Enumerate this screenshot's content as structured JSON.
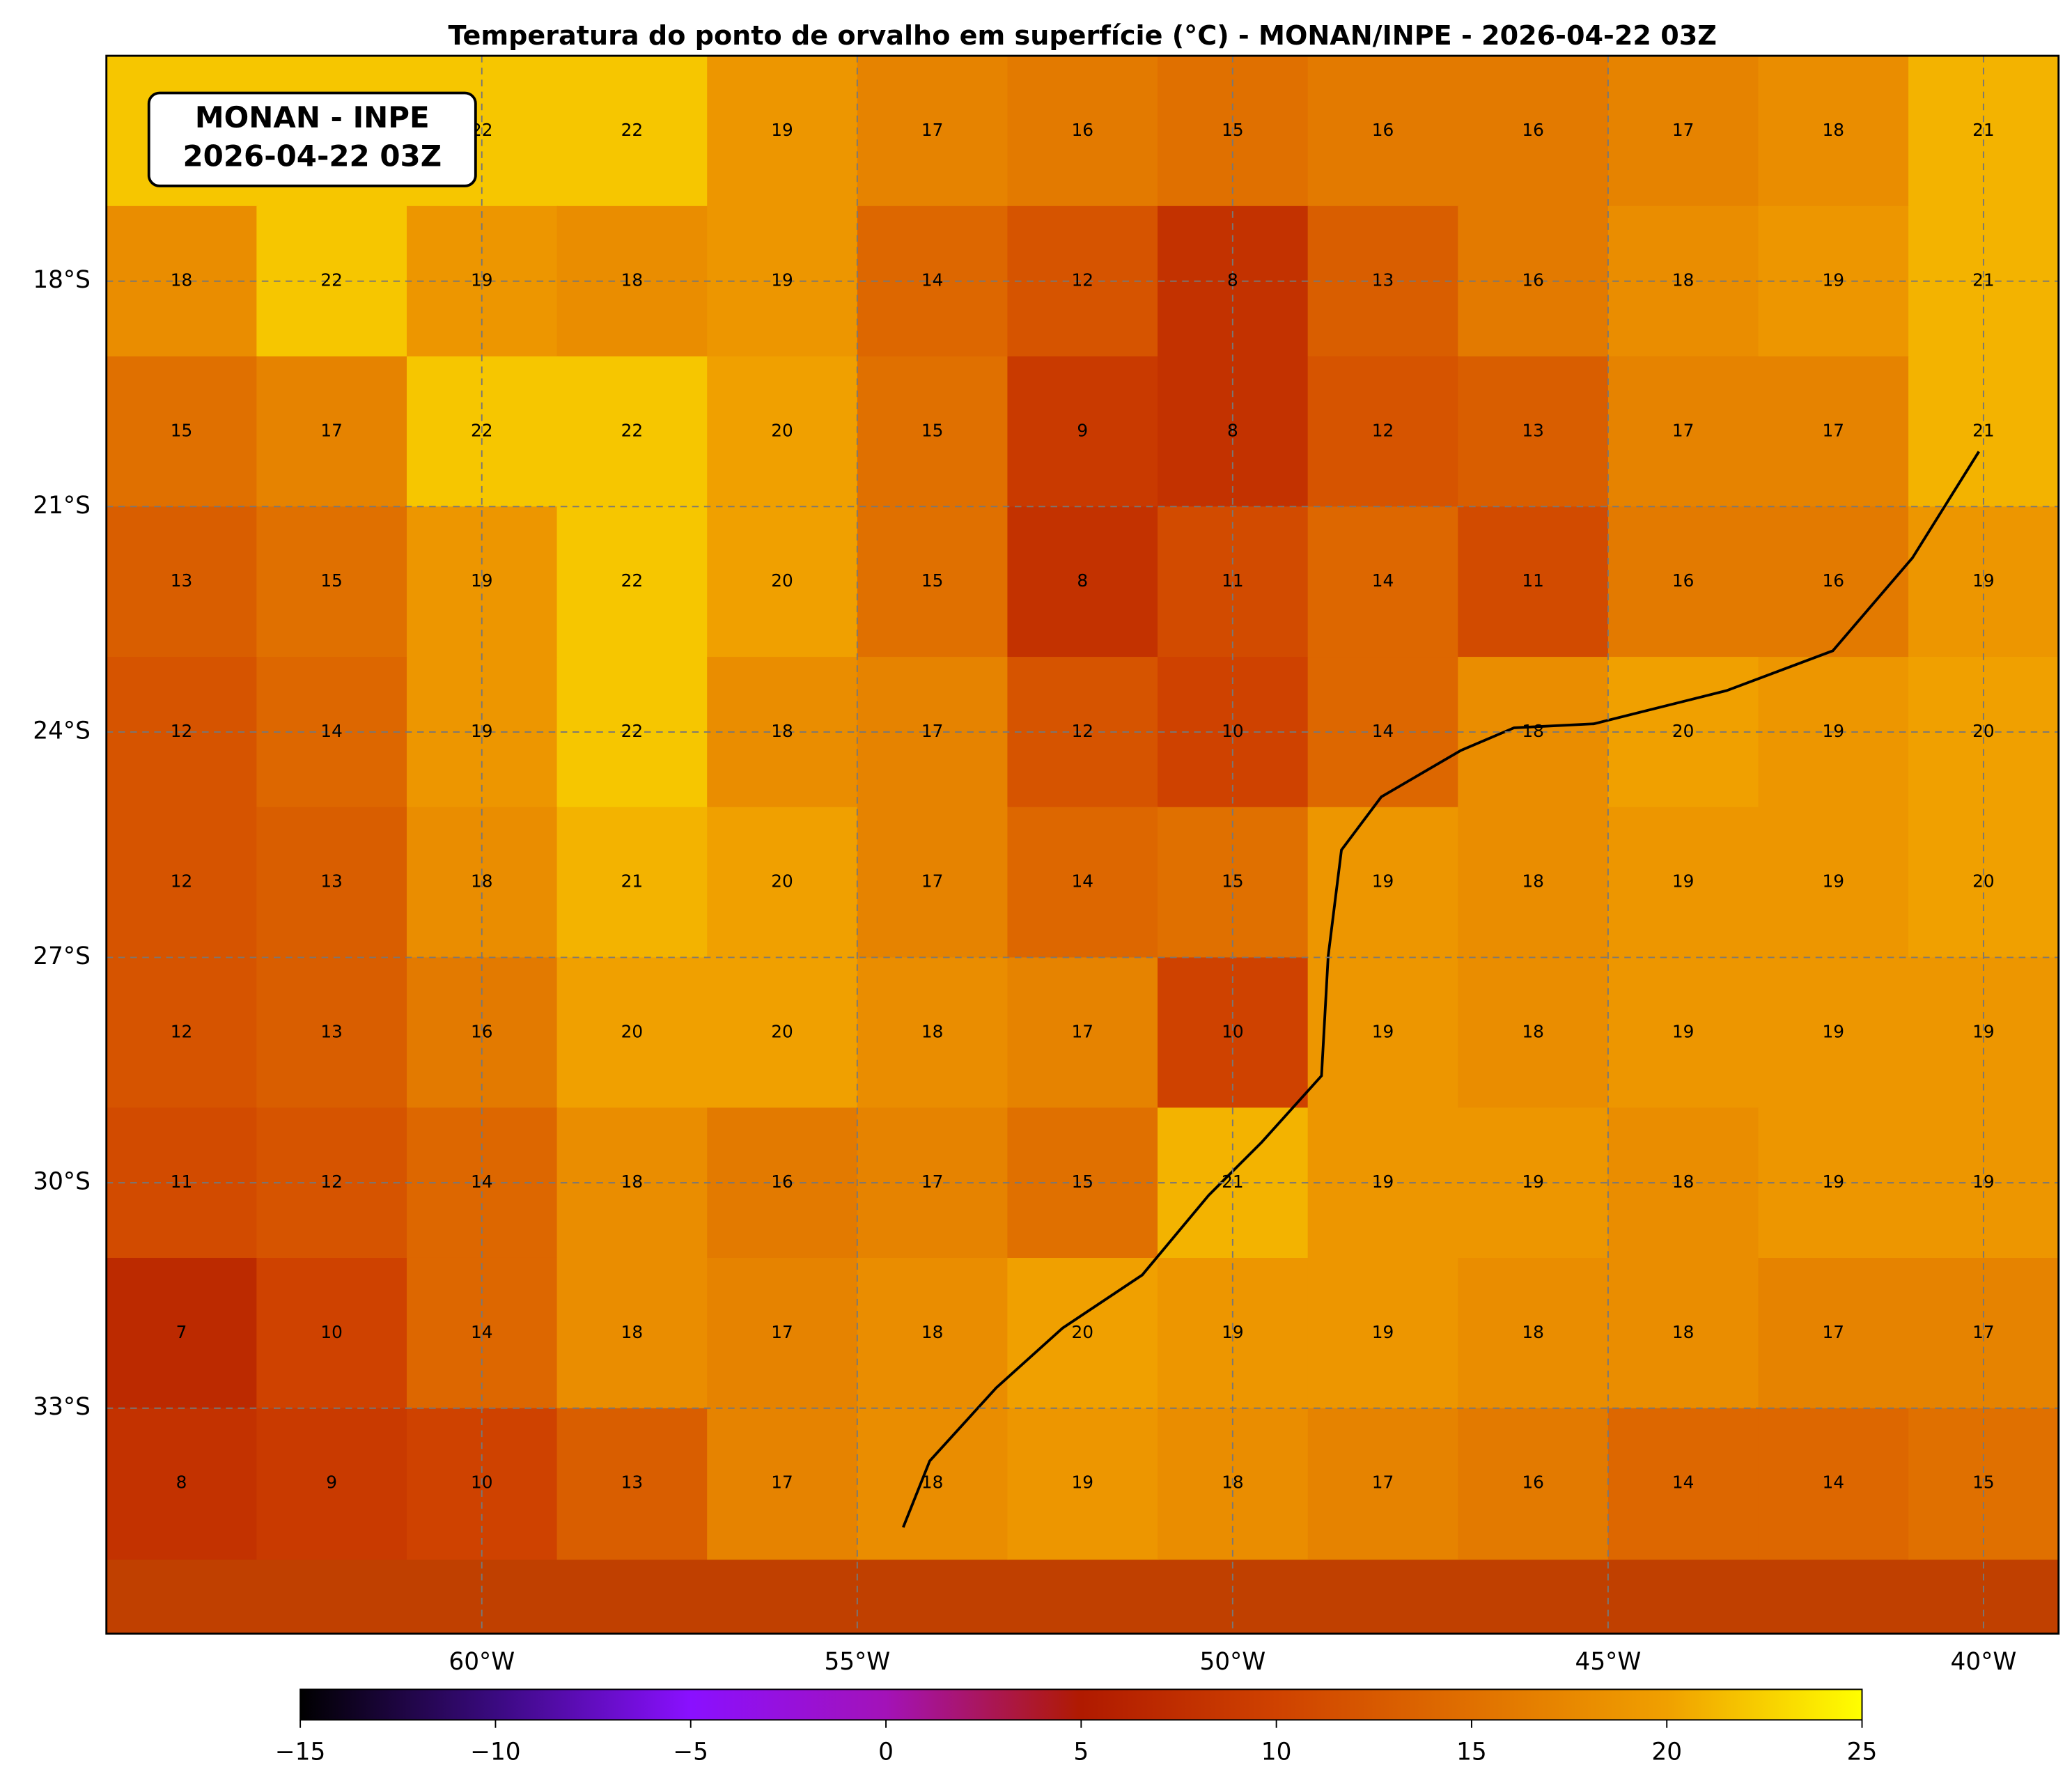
{
  "chart_data": {
    "type": "map",
    "title": "Temperatura do ponto de orvalho em superfície (°C) - MONAN/INPE - 2026-04-22 03Z",
    "annotation": [
      "MONAN - INPE",
      "2026-04-22 03Z"
    ],
    "xlim": [
      -65,
      -39
    ],
    "ylim": [
      -36,
      -15
    ],
    "xticks": [
      {
        "value": -60,
        "label": "60°W"
      },
      {
        "value": -55,
        "label": "55°W"
      },
      {
        "value": -50,
        "label": "50°W"
      },
      {
        "value": -45,
        "label": "45°W"
      },
      {
        "value": -40,
        "label": "40°W"
      }
    ],
    "yticks": [
      {
        "value": -18,
        "label": "18°S"
      },
      {
        "value": -21,
        "label": "21°S"
      },
      {
        "value": -24,
        "label": "24°S"
      },
      {
        "value": -27,
        "label": "27°S"
      },
      {
        "value": -30,
        "label": "30°S"
      },
      {
        "value": -33,
        "label": "33°S"
      }
    ],
    "grid": true,
    "x": [
      -64,
      -62,
      -60,
      -58,
      -56,
      -54,
      -52,
      -50,
      -48,
      -46,
      -44,
      -42,
      -40
    ],
    "y": [
      -16,
      -18,
      -20,
      -22,
      -24,
      -26,
      -28,
      -30,
      -32,
      -34
    ],
    "values": [
      [
        22,
        22,
        22,
        22,
        19,
        17,
        16,
        15,
        16,
        16,
        17,
        18,
        21
      ],
      [
        18,
        22,
        19,
        18,
        19,
        14,
        12,
        8,
        13,
        16,
        18,
        19,
        21
      ],
      [
        15,
        17,
        22,
        22,
        20,
        15,
        9,
        8,
        12,
        13,
        17,
        17,
        21
      ],
      [
        13,
        15,
        19,
        22,
        20,
        15,
        8,
        11,
        14,
        11,
        16,
        16,
        19
      ],
      [
        12,
        14,
        19,
        22,
        18,
        17,
        12,
        10,
        14,
        18,
        20,
        19,
        20
      ],
      [
        12,
        13,
        18,
        21,
        20,
        17,
        14,
        15,
        19,
        18,
        19,
        19,
        20
      ],
      [
        12,
        13,
        16,
        20,
        20,
        18,
        17,
        10,
        19,
        18,
        19,
        19,
        19
      ],
      [
        11,
        12,
        14,
        18,
        16,
        17,
        15,
        21,
        19,
        19,
        18,
        19,
        19
      ],
      [
        7,
        10,
        14,
        18,
        17,
        18,
        20,
        19,
        19,
        18,
        18,
        17,
        17
      ],
      [
        8,
        9,
        10,
        13,
        17,
        18,
        19,
        18,
        17,
        16,
        14,
        14,
        15
      ]
    ],
    "clim": [
      -15,
      25
    ],
    "colormap": [
      "#000000",
      "#3a0a80",
      "#8a10ff",
      "#a312b8",
      "#b01a00",
      "#cf4200",
      "#e07000",
      "#f0a000",
      "#ffff00"
    ],
    "cticks": [
      {
        "value": -15,
        "label": "−15"
      },
      {
        "value": -10,
        "label": "−10"
      },
      {
        "value": -5,
        "label": "−5"
      },
      0,
      5,
      10,
      15,
      20,
      25
    ]
  }
}
